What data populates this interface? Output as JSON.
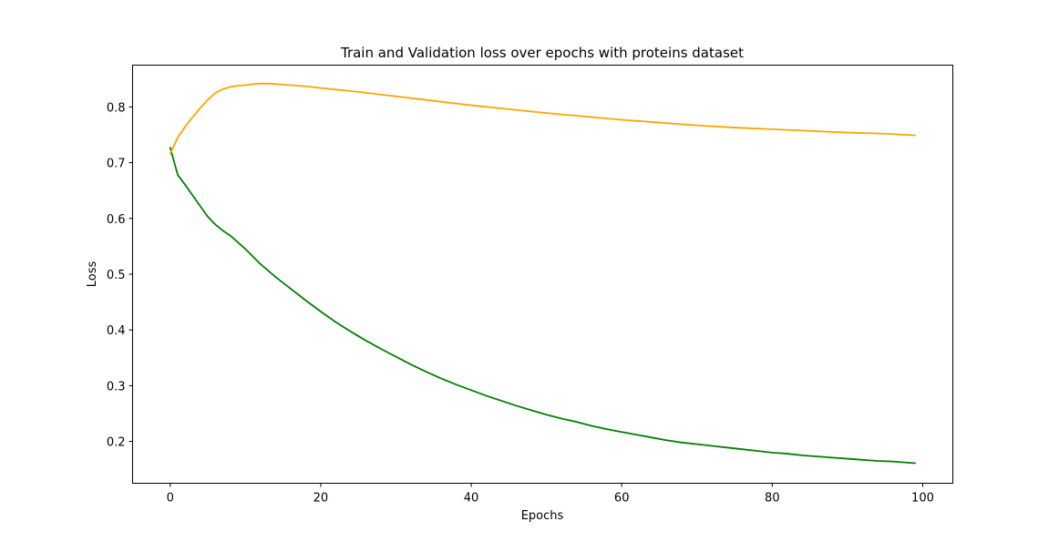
{
  "chart_data": {
    "type": "line",
    "title": "Train and Validation loss over epochs with proteins dataset",
    "xlabel": "Epochs",
    "ylabel": "Loss",
    "xlim": [
      -5,
      104
    ],
    "ylim": [
      0.125,
      0.875
    ],
    "xticks": [
      0,
      20,
      40,
      60,
      80,
      100
    ],
    "yticks": [
      0.2,
      0.3,
      0.4,
      0.5,
      0.6,
      0.7,
      0.8
    ],
    "grid": false,
    "series": [
      {
        "color": "#008000",
        "x": [
          0,
          1,
          2,
          3,
          4,
          5,
          6,
          7,
          8,
          10,
          12,
          14,
          16,
          18,
          20,
          22,
          24,
          26,
          28,
          30,
          32,
          34,
          36,
          38,
          40,
          42,
          44,
          46,
          48,
          50,
          52,
          54,
          56,
          58,
          60,
          62,
          64,
          66,
          68,
          70,
          72,
          74,
          76,
          78,
          80,
          82,
          84,
          86,
          88,
          90,
          92,
          94,
          96,
          98,
          99
        ],
        "y": [
          0.727,
          0.678,
          0.66,
          0.641,
          0.622,
          0.603,
          0.589,
          0.578,
          0.569,
          0.545,
          0.518,
          0.495,
          0.474,
          0.453,
          0.433,
          0.414,
          0.397,
          0.381,
          0.366,
          0.352,
          0.338,
          0.325,
          0.313,
          0.302,
          0.292,
          0.282,
          0.273,
          0.264,
          0.256,
          0.248,
          0.241,
          0.235,
          0.228,
          0.222,
          0.217,
          0.212,
          0.207,
          0.202,
          0.198,
          0.195,
          0.192,
          0.189,
          0.186,
          0.183,
          0.18,
          0.178,
          0.175,
          0.173,
          0.171,
          0.169,
          0.167,
          0.165,
          0.164,
          0.162,
          0.161
        ]
      },
      {
        "color": "#FFA500",
        "x": [
          0,
          1,
          2,
          3,
          4,
          5,
          6,
          7,
          8,
          9,
          10,
          11,
          12,
          13,
          14,
          16,
          18,
          20,
          25,
          30,
          35,
          40,
          45,
          50,
          55,
          60,
          65,
          70,
          75,
          80,
          85,
          90,
          95,
          99
        ],
        "y": [
          0.716,
          0.745,
          0.765,
          0.782,
          0.798,
          0.813,
          0.825,
          0.832,
          0.836,
          0.838,
          0.839,
          0.841,
          0.842,
          0.842,
          0.841,
          0.839,
          0.837,
          0.834,
          0.827,
          0.819,
          0.811,
          0.803,
          0.796,
          0.789,
          0.783,
          0.777,
          0.772,
          0.767,
          0.763,
          0.76,
          0.757,
          0.754,
          0.752,
          0.749
        ]
      }
    ]
  }
}
